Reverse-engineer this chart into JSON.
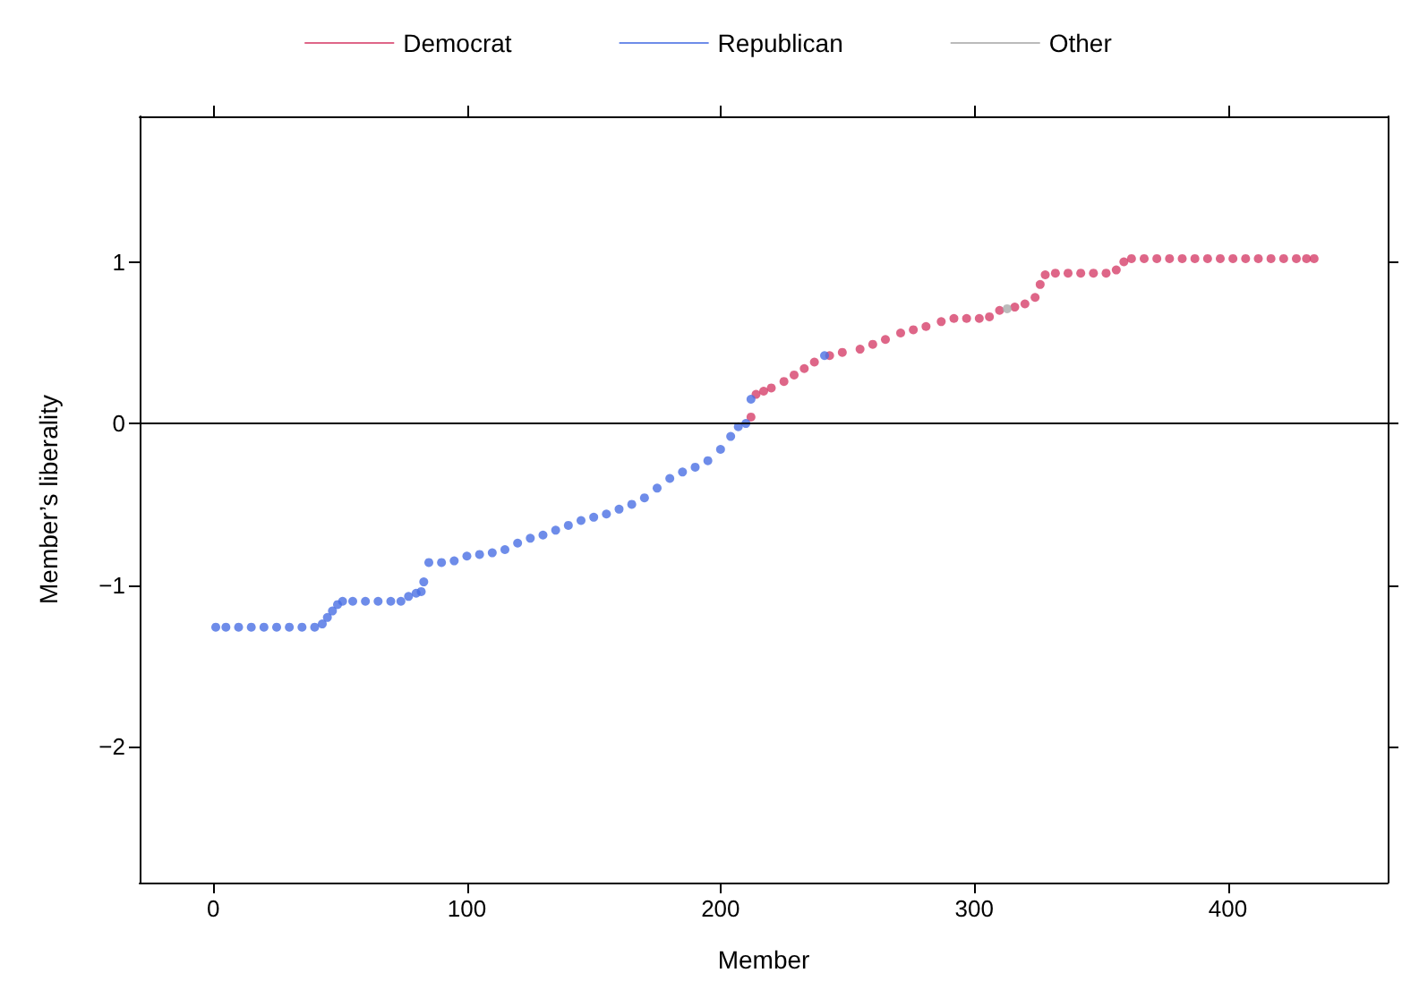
{
  "chart_data": {
    "type": "scatter",
    "xlabel": "Member",
    "ylabel": "Member’s liberality",
    "xlim": [
      -29,
      463
    ],
    "ylim": [
      -2.84,
      1.9
    ],
    "xticks": [
      0,
      100,
      200,
      300,
      400
    ],
    "yticks": [
      {
        "value": -2,
        "label": "−2"
      },
      {
        "value": -1,
        "label": "−1"
      },
      0,
      1
    ],
    "grid": false,
    "legend": "top",
    "marker": "circle",
    "ref_lines": [
      {
        "axis": "y",
        "value": 0,
        "color": "#000000"
      }
    ],
    "series": [
      {
        "name": "Democrat",
        "color": "#d6406a",
        "x": [
          212,
          214,
          217,
          220,
          225,
          229,
          233,
          237,
          243,
          248,
          255,
          260,
          265,
          271,
          276,
          281,
          287,
          292,
          297,
          302,
          306,
          310,
          316,
          320,
          324,
          326,
          328,
          332,
          337,
          342,
          347,
          352,
          356,
          359,
          362,
          367,
          372,
          377,
          382,
          387,
          392,
          397,
          402,
          407,
          412,
          417,
          422,
          427,
          431,
          434
        ],
        "values": [
          0.04,
          0.18,
          0.2,
          0.22,
          0.26,
          0.3,
          0.34,
          0.38,
          0.42,
          0.44,
          0.46,
          0.49,
          0.52,
          0.56,
          0.58,
          0.6,
          0.63,
          0.65,
          0.65,
          0.65,
          0.66,
          0.7,
          0.72,
          0.74,
          0.78,
          0.86,
          0.92,
          0.93,
          0.93,
          0.93,
          0.93,
          0.93,
          0.95,
          1.0,
          1.02,
          1.02,
          1.02,
          1.02,
          1.02,
          1.02,
          1.02,
          1.02,
          1.02,
          1.02,
          1.02,
          1.02,
          1.02,
          1.02,
          1.02,
          1.02
        ]
      },
      {
        "name": "Republican",
        "color": "#4a6fe3",
        "x": [
          1,
          5,
          10,
          15,
          20,
          25,
          30,
          35,
          40,
          43,
          45,
          47,
          49,
          51,
          55,
          60,
          65,
          70,
          74,
          77,
          80,
          82,
          83,
          85,
          90,
          95,
          100,
          105,
          110,
          115,
          120,
          125,
          130,
          135,
          140,
          145,
          150,
          155,
          160,
          165,
          170,
          175,
          180,
          185,
          190,
          195,
          200,
          204,
          207,
          210,
          212,
          241
        ],
        "values": [
          -1.26,
          -1.26,
          -1.26,
          -1.26,
          -1.26,
          -1.26,
          -1.26,
          -1.26,
          -1.26,
          -1.24,
          -1.2,
          -1.16,
          -1.12,
          -1.1,
          -1.1,
          -1.1,
          -1.1,
          -1.1,
          -1.1,
          -1.07,
          -1.05,
          -1.04,
          -0.98,
          -0.86,
          -0.86,
          -0.85,
          -0.82,
          -0.81,
          -0.8,
          -0.78,
          -0.74,
          -0.71,
          -0.69,
          -0.66,
          -0.63,
          -0.6,
          -0.58,
          -0.56,
          -0.53,
          -0.5,
          -0.46,
          -0.4,
          -0.34,
          -0.3,
          -0.27,
          -0.23,
          -0.16,
          -0.08,
          -0.02,
          0.0,
          0.15,
          0.42
        ]
      },
      {
        "name": "Other",
        "color": "#aaaaaa",
        "x": [
          313
        ],
        "values": [
          0.71
        ]
      }
    ]
  }
}
